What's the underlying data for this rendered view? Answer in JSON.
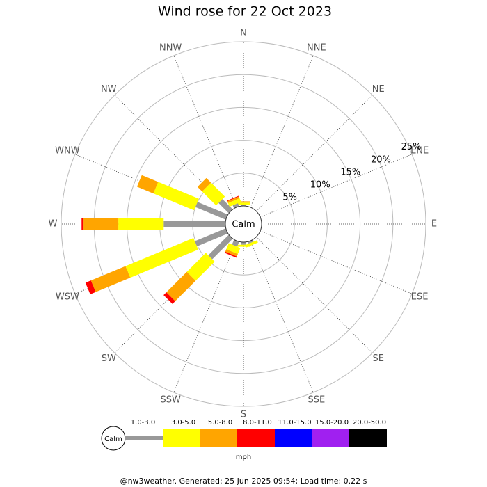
{
  "chart_data": {
    "type": "windrose",
    "title": "Wind rose for 22 Oct 2023",
    "directions": [
      "N",
      "NNE",
      "NE",
      "ENE",
      "E",
      "ESE",
      "SE",
      "SSE",
      "S",
      "SSW",
      "SW",
      "WSW",
      "W",
      "WNW",
      "NW",
      "NNW"
    ],
    "center_label": "Calm",
    "rlim": [
      0,
      25
    ],
    "rticks": [
      {
        "value": 5,
        "label": "5%"
      },
      {
        "value": 10,
        "label": "10%"
      },
      {
        "value": 15,
        "label": "15%"
      },
      {
        "value": 20,
        "label": "20%"
      },
      {
        "value": 25,
        "label": "25%"
      }
    ],
    "series": [
      {
        "name": "1.0-3.0",
        "color": "#999999",
        "values": [
          0.2,
          0,
          0,
          0,
          0,
          0,
          0,
          0.3,
          0.4,
          0.8,
          4.4,
          5.1,
          9.4,
          5.0,
          2.2,
          0.5
        ]
      },
      {
        "name": "3.0-5.0",
        "color": "#ffff00",
        "values": [
          0.3,
          0,
          0,
          0,
          0,
          0,
          0,
          0.4,
          0.3,
          1.0,
          4.1,
          11.2,
          6.9,
          6.7,
          3.0,
          0.6
        ]
      },
      {
        "name": "5.0-8.0",
        "color": "#ffa500",
        "values": [
          0.2,
          0,
          0,
          0,
          0,
          0,
          0,
          0,
          0,
          0.4,
          4.4,
          5.7,
          5.3,
          2.7,
          1.0,
          0.3
        ]
      },
      {
        "name": "8.0-11.0",
        "color": "#ff0000",
        "values": [
          0,
          0,
          0,
          0,
          0,
          0,
          0,
          0,
          0,
          0.2,
          0.6,
          0.9,
          0.3,
          0,
          0,
          0.1
        ]
      },
      {
        "name": "11.0-15.0",
        "color": "#0000ff",
        "values": [
          0,
          0,
          0,
          0,
          0,
          0,
          0,
          0,
          0,
          0,
          0,
          0,
          0,
          0,
          0,
          0
        ]
      },
      {
        "name": "15.0-20.0",
        "color": "#a020f0",
        "values": [
          0,
          0,
          0,
          0,
          0,
          0,
          0,
          0,
          0,
          0,
          0,
          0,
          0,
          0,
          0,
          0
        ]
      },
      {
        "name": "20.0-50.0",
        "color": "#000000",
        "values": [
          0,
          0,
          0,
          0,
          0,
          0,
          0,
          0,
          0,
          0,
          0,
          0,
          0,
          0,
          0,
          0
        ]
      }
    ],
    "legend_unit": "mph",
    "footer": "@nw3weather. Generated: 25 Jun 2025 09:54; Load time: 0.22 s"
  }
}
